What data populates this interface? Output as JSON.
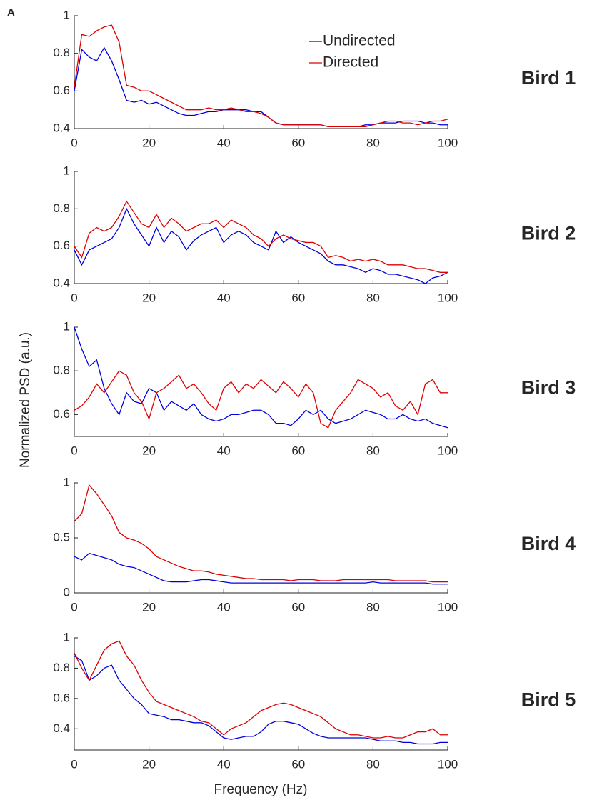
{
  "panel_label": "A",
  "y_label": "Normalized PSD (a.u.)",
  "x_label": "Frequency (Hz)",
  "chart_data": [
    {
      "type": "line",
      "title": "Bird 1",
      "legend": true,
      "x": [
        0,
        2,
        4,
        6,
        8,
        10,
        12,
        14,
        16,
        18,
        20,
        22,
        24,
        26,
        28,
        30,
        32,
        34,
        36,
        38,
        40,
        42,
        44,
        46,
        48,
        50,
        52,
        54,
        56,
        58,
        60,
        62,
        64,
        66,
        68,
        70,
        72,
        74,
        76,
        78,
        80,
        82,
        84,
        86,
        88,
        90,
        92,
        94,
        96,
        98,
        100
      ],
      "xlim": [
        0,
        100
      ],
      "xticks": [
        0,
        20,
        40,
        60,
        80,
        100
      ],
      "ylim": [
        0.4,
        1
      ],
      "yticks": [
        0.4,
        0.6,
        0.8,
        1
      ],
      "series": [
        {
          "name": "Undirected",
          "color": "#0000dd",
          "values": [
            0.6,
            0.82,
            0.78,
            0.76,
            0.83,
            0.76,
            0.66,
            0.55,
            0.54,
            0.55,
            0.53,
            0.54,
            0.52,
            0.5,
            0.48,
            0.47,
            0.47,
            0.48,
            0.49,
            0.49,
            0.5,
            0.5,
            0.5,
            0.5,
            0.49,
            0.49,
            0.46,
            0.43,
            0.42,
            0.42,
            0.42,
            0.42,
            0.42,
            0.42,
            0.41,
            0.41,
            0.41,
            0.41,
            0.41,
            0.42,
            0.42,
            0.43,
            0.43,
            0.43,
            0.44,
            0.44,
            0.44,
            0.43,
            0.43,
            0.42,
            0.42
          ]
        },
        {
          "name": "Directed",
          "color": "#dd0000",
          "values": [
            0.62,
            0.9,
            0.89,
            0.92,
            0.94,
            0.95,
            0.86,
            0.63,
            0.62,
            0.6,
            0.6,
            0.58,
            0.56,
            0.54,
            0.52,
            0.5,
            0.5,
            0.5,
            0.51,
            0.5,
            0.5,
            0.51,
            0.5,
            0.49,
            0.49,
            0.48,
            0.46,
            0.43,
            0.42,
            0.42,
            0.42,
            0.42,
            0.42,
            0.42,
            0.41,
            0.41,
            0.41,
            0.41,
            0.41,
            0.41,
            0.42,
            0.43,
            0.44,
            0.44,
            0.43,
            0.43,
            0.42,
            0.43,
            0.44,
            0.44,
            0.45
          ]
        }
      ]
    },
    {
      "type": "line",
      "title": "Bird 2",
      "x": [
        0,
        2,
        4,
        6,
        8,
        10,
        12,
        14,
        16,
        18,
        20,
        22,
        24,
        26,
        28,
        30,
        32,
        34,
        36,
        38,
        40,
        42,
        44,
        46,
        48,
        50,
        52,
        54,
        56,
        58,
        60,
        62,
        64,
        66,
        68,
        70,
        72,
        74,
        76,
        78,
        80,
        82,
        84,
        86,
        88,
        90,
        92,
        94,
        96,
        98,
        100
      ],
      "xlim": [
        0,
        100
      ],
      "xticks": [
        0,
        20,
        40,
        60,
        80,
        100
      ],
      "ylim": [
        0.4,
        1
      ],
      "yticks": [
        0.4,
        0.6,
        0.8,
        1
      ],
      "series": [
        {
          "color": "#0000dd",
          "values": [
            0.58,
            0.5,
            0.58,
            0.6,
            0.62,
            0.64,
            0.7,
            0.8,
            0.72,
            0.66,
            0.6,
            0.7,
            0.62,
            0.68,
            0.65,
            0.58,
            0.63,
            0.66,
            0.68,
            0.7,
            0.62,
            0.66,
            0.68,
            0.66,
            0.62,
            0.6,
            0.58,
            0.68,
            0.62,
            0.65,
            0.62,
            0.6,
            0.58,
            0.56,
            0.52,
            0.5,
            0.5,
            0.49,
            0.48,
            0.46,
            0.48,
            0.47,
            0.45,
            0.45,
            0.44,
            0.43,
            0.42,
            0.4,
            0.43,
            0.44,
            0.46
          ]
        },
        {
          "color": "#dd0000",
          "values": [
            0.6,
            0.54,
            0.67,
            0.7,
            0.68,
            0.7,
            0.76,
            0.84,
            0.78,
            0.72,
            0.7,
            0.77,
            0.7,
            0.75,
            0.72,
            0.68,
            0.7,
            0.72,
            0.72,
            0.74,
            0.7,
            0.74,
            0.72,
            0.7,
            0.66,
            0.64,
            0.6,
            0.64,
            0.66,
            0.64,
            0.63,
            0.62,
            0.62,
            0.6,
            0.54,
            0.55,
            0.54,
            0.52,
            0.53,
            0.52,
            0.53,
            0.52,
            0.5,
            0.5,
            0.5,
            0.49,
            0.48,
            0.48,
            0.47,
            0.46,
            0.46
          ]
        }
      ]
    },
    {
      "type": "line",
      "title": "Bird 3",
      "x": [
        0,
        2,
        4,
        6,
        8,
        10,
        12,
        14,
        16,
        18,
        20,
        22,
        24,
        26,
        28,
        30,
        32,
        34,
        36,
        38,
        40,
        42,
        44,
        46,
        48,
        50,
        52,
        54,
        56,
        58,
        60,
        62,
        64,
        66,
        68,
        70,
        72,
        74,
        76,
        78,
        80,
        82,
        84,
        86,
        88,
        90,
        92,
        94,
        96,
        98,
        100
      ],
      "xlim": [
        0,
        100
      ],
      "xticks": [
        0,
        20,
        40,
        60,
        80,
        100
      ],
      "ylim": [
        0.5,
        1
      ],
      "yticks": [
        0.6,
        0.8,
        1
      ],
      "series": [
        {
          "color": "#0000dd",
          "values": [
            1.0,
            0.9,
            0.82,
            0.85,
            0.72,
            0.65,
            0.6,
            0.7,
            0.66,
            0.65,
            0.72,
            0.7,
            0.62,
            0.66,
            0.64,
            0.62,
            0.65,
            0.6,
            0.58,
            0.57,
            0.58,
            0.6,
            0.6,
            0.61,
            0.62,
            0.62,
            0.6,
            0.56,
            0.56,
            0.55,
            0.58,
            0.62,
            0.6,
            0.62,
            0.58,
            0.56,
            0.57,
            0.58,
            0.6,
            0.62,
            0.61,
            0.6,
            0.58,
            0.58,
            0.6,
            0.58,
            0.57,
            0.58,
            0.56,
            0.55,
            0.54
          ]
        },
        {
          "color": "#dd0000",
          "values": [
            0.62,
            0.64,
            0.68,
            0.74,
            0.7,
            0.75,
            0.8,
            0.78,
            0.7,
            0.66,
            0.58,
            0.7,
            0.72,
            0.75,
            0.78,
            0.72,
            0.74,
            0.7,
            0.65,
            0.62,
            0.72,
            0.75,
            0.7,
            0.74,
            0.72,
            0.76,
            0.73,
            0.7,
            0.75,
            0.72,
            0.68,
            0.74,
            0.7,
            0.56,
            0.54,
            0.62,
            0.66,
            0.7,
            0.76,
            0.74,
            0.72,
            0.68,
            0.7,
            0.64,
            0.62,
            0.66,
            0.6,
            0.74,
            0.76,
            0.7,
            0.7
          ]
        }
      ]
    },
    {
      "type": "line",
      "title": "Bird 4",
      "x": [
        0,
        2,
        4,
        6,
        8,
        10,
        12,
        14,
        16,
        18,
        20,
        22,
        24,
        26,
        28,
        30,
        32,
        34,
        36,
        38,
        40,
        42,
        44,
        46,
        48,
        50,
        52,
        54,
        56,
        58,
        60,
        62,
        64,
        66,
        68,
        70,
        72,
        74,
        76,
        78,
        80,
        82,
        84,
        86,
        88,
        90,
        92,
        94,
        96,
        98,
        100
      ],
      "xlim": [
        0,
        100
      ],
      "xticks": [
        0,
        20,
        40,
        60,
        80,
        100
      ],
      "ylim": [
        0,
        1
      ],
      "yticks": [
        0,
        0.5,
        1
      ],
      "series": [
        {
          "color": "#0000dd",
          "values": [
            0.33,
            0.3,
            0.36,
            0.34,
            0.32,
            0.3,
            0.26,
            0.24,
            0.23,
            0.2,
            0.17,
            0.14,
            0.11,
            0.1,
            0.1,
            0.1,
            0.11,
            0.12,
            0.12,
            0.11,
            0.1,
            0.09,
            0.09,
            0.09,
            0.09,
            0.09,
            0.09,
            0.09,
            0.09,
            0.09,
            0.09,
            0.09,
            0.09,
            0.09,
            0.09,
            0.09,
            0.09,
            0.09,
            0.09,
            0.09,
            0.1,
            0.09,
            0.09,
            0.09,
            0.09,
            0.09,
            0.09,
            0.09,
            0.08,
            0.08,
            0.08
          ]
        },
        {
          "color": "#dd0000",
          "values": [
            0.65,
            0.72,
            0.98,
            0.9,
            0.8,
            0.7,
            0.55,
            0.5,
            0.48,
            0.45,
            0.4,
            0.33,
            0.3,
            0.27,
            0.24,
            0.22,
            0.2,
            0.2,
            0.19,
            0.17,
            0.16,
            0.15,
            0.14,
            0.13,
            0.13,
            0.12,
            0.12,
            0.12,
            0.12,
            0.11,
            0.12,
            0.12,
            0.12,
            0.11,
            0.11,
            0.11,
            0.12,
            0.12,
            0.12,
            0.12,
            0.12,
            0.12,
            0.12,
            0.11,
            0.11,
            0.11,
            0.11,
            0.11,
            0.1,
            0.1,
            0.1
          ]
        }
      ]
    },
    {
      "type": "line",
      "title": "Bird 5",
      "x": [
        0,
        2,
        4,
        6,
        8,
        10,
        12,
        14,
        16,
        18,
        20,
        22,
        24,
        26,
        28,
        30,
        32,
        34,
        36,
        38,
        40,
        42,
        44,
        46,
        48,
        50,
        52,
        54,
        56,
        58,
        60,
        62,
        64,
        66,
        68,
        70,
        72,
        74,
        76,
        78,
        80,
        82,
        84,
        86,
        88,
        90,
        92,
        94,
        96,
        98,
        100
      ],
      "xlim": [
        0,
        100
      ],
      "xticks": [
        0,
        20,
        40,
        60,
        80,
        100
      ],
      "ylim": [
        0.26,
        1
      ],
      "yticks": [
        0.4,
        0.6,
        0.8,
        1
      ],
      "series": [
        {
          "color": "#0000dd",
          "values": [
            0.88,
            0.85,
            0.72,
            0.75,
            0.8,
            0.82,
            0.72,
            0.66,
            0.6,
            0.56,
            0.5,
            0.49,
            0.48,
            0.46,
            0.46,
            0.45,
            0.44,
            0.44,
            0.42,
            0.38,
            0.34,
            0.33,
            0.34,
            0.35,
            0.35,
            0.38,
            0.43,
            0.45,
            0.45,
            0.44,
            0.43,
            0.4,
            0.37,
            0.35,
            0.34,
            0.34,
            0.34,
            0.34,
            0.34,
            0.34,
            0.33,
            0.32,
            0.32,
            0.32,
            0.31,
            0.31,
            0.3,
            0.3,
            0.3,
            0.31,
            0.31
          ]
        },
        {
          "color": "#dd0000",
          "values": [
            0.9,
            0.8,
            0.72,
            0.82,
            0.92,
            0.96,
            0.98,
            0.88,
            0.82,
            0.72,
            0.64,
            0.58,
            0.56,
            0.54,
            0.52,
            0.5,
            0.48,
            0.45,
            0.44,
            0.4,
            0.36,
            0.4,
            0.42,
            0.44,
            0.48,
            0.52,
            0.54,
            0.56,
            0.57,
            0.56,
            0.54,
            0.52,
            0.5,
            0.48,
            0.44,
            0.4,
            0.38,
            0.36,
            0.36,
            0.35,
            0.34,
            0.34,
            0.35,
            0.34,
            0.34,
            0.36,
            0.38,
            0.38,
            0.4,
            0.36,
            0.36
          ]
        }
      ]
    }
  ]
}
